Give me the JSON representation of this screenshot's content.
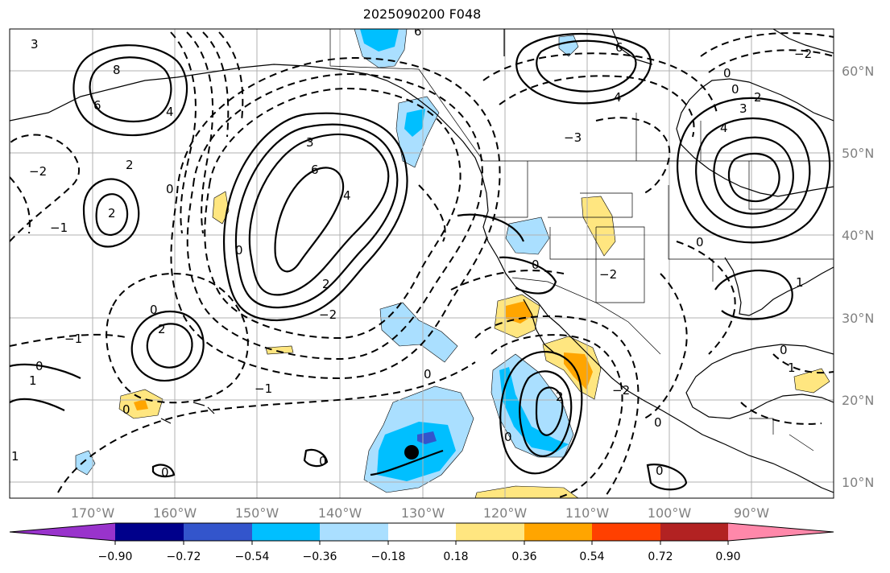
{
  "title": "2025090200 F048",
  "map": {
    "lat_labels": [
      "60°N",
      "50°N",
      "40°N",
      "30°N",
      "20°N",
      "10°N"
    ],
    "lon_labels": [
      "170°W",
      "160°W",
      "150°W",
      "140°W",
      "130°W",
      "120°W",
      "110°W",
      "100°W",
      "90°W"
    ],
    "colorbar": {
      "colors": [
        "#9933cc",
        "#00008b",
        "#3355cc",
        "#00bfff",
        "#aadfff",
        "#ffffff",
        "#ffe680",
        "#ffa500",
        "#ff4000",
        "#b22222",
        "#ff88aa"
      ],
      "tick_labels": [
        "−0.90",
        "−0.72",
        "−0.54",
        "−0.36",
        "−0.18",
        "0.18",
        "0.36",
        "0.54",
        "0.72",
        "0.90"
      ]
    },
    "contour_labels": [
      "0",
      "1",
      "2",
      "3",
      "4",
      "6",
      "−1",
      "−2",
      "−3"
    ],
    "storm_marker": "black-dot"
  }
}
